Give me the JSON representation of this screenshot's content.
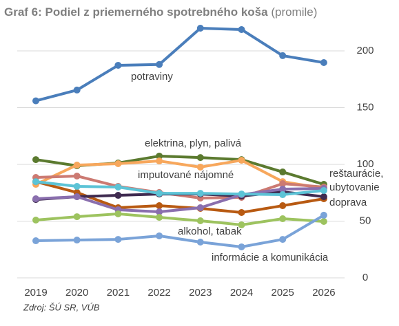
{
  "chart_data": {
    "type": "line",
    "title": "Graf 6: Podiel z priemerného spotrebného koša",
    "subtitle": "(promile)",
    "source": "Zdroj: ŠÚ SR, VÚB",
    "categories": [
      "2019",
      "2020",
      "2021",
      "2022",
      "2023",
      "2024",
      "2025",
      "2026"
    ],
    "ylim": [
      0,
      220
    ],
    "yticks": [
      0,
      50,
      100,
      150,
      200
    ],
    "grid": true,
    "series": [
      {
        "name": "potraviny",
        "color": "#4a7ebb",
        "values": [
          156,
          165.5,
          187.3,
          188,
          220,
          218.8,
          195.8,
          189.7
        ]
      },
      {
        "name": "elektrina, plyn, palivá",
        "color": "#5b7a2f",
        "values": [
          104.2,
          98.8,
          101.2,
          107.3,
          106,
          104.2,
          93.3,
          82.4
        ]
      },
      {
        "name": "imputované nájomné",
        "color": "#f7a75c",
        "values": [
          82.4,
          99.4,
          100.6,
          103,
          97.6,
          103.6,
          84.8,
          78.8
        ]
      },
      {
        "name": "reštaurácie, ubytovanie",
        "color": "#cc7a72",
        "values": [
          88.5,
          89.7,
          80.6,
          75.2,
          70.3,
          70.9,
          83,
          80
        ]
      },
      {
        "name": "doprava",
        "color": "#b85a12",
        "values": [
          84.8,
          75.2,
          61.8,
          63.6,
          61.2,
          57.6,
          63.6,
          69.7
        ]
      },
      {
        "color": "#3f2b50",
        "values": [
          69,
          71.5,
          72.7,
          73.9,
          73.9,
          72.1,
          75.8,
          71.5
        ]
      },
      {
        "color": "#8a6fae",
        "values": [
          69.7,
          71.5,
          60,
          58.2,
          61.8,
          73.3,
          78.2,
          78.8
        ]
      },
      {
        "color": "#5cc3d6",
        "values": [
          84.8,
          80.6,
          80,
          74.5,
          74.5,
          73.9,
          73.3,
          77
        ]
      },
      {
        "name": "alkohol, tabak",
        "color": "#9dc35f",
        "values": [
          50.9,
          53.9,
          56.4,
          53.3,
          50.3,
          46.7,
          52.1,
          49.7
        ]
      },
      {
        "name": "informácie a komunikácia",
        "color": "#7aa3d8",
        "values": [
          32.7,
          33.3,
          33.9,
          37,
          31.5,
          27.3,
          33.9,
          55.2
        ]
      }
    ]
  }
}
